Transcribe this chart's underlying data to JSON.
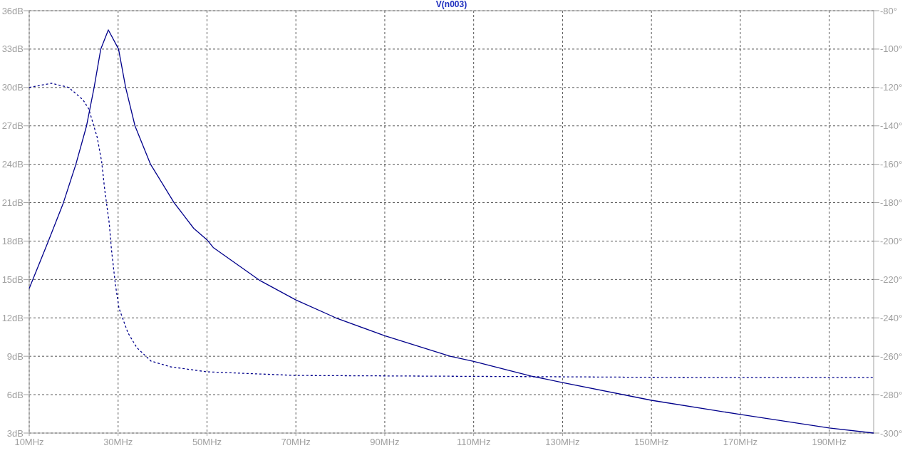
{
  "chart_data": {
    "type": "line",
    "title": "V(n003)",
    "xlim": [
      10,
      200
    ],
    "xticks": [
      {
        "value": 10,
        "label": "10MHz"
      },
      {
        "value": 30,
        "label": "30MHz"
      },
      {
        "value": 50,
        "label": "50MHz"
      },
      {
        "value": 70,
        "label": "70MHz"
      },
      {
        "value": 90,
        "label": "90MHz"
      },
      {
        "value": 110,
        "label": "110MHz"
      },
      {
        "value": 130,
        "label": "130MHz"
      },
      {
        "value": 150,
        "label": "150MHz"
      },
      {
        "value": 170,
        "label": "170MHz"
      },
      {
        "value": 190,
        "label": "190MHz"
      }
    ],
    "ylim": [
      3,
      36
    ],
    "yticks": [
      {
        "value": 3,
        "label": "3dB"
      },
      {
        "value": 6,
        "label": "6dB"
      },
      {
        "value": 9,
        "label": "9dB"
      },
      {
        "value": 12,
        "label": "12dB"
      },
      {
        "value": 15,
        "label": "15dB"
      },
      {
        "value": 18,
        "label": "18dB"
      },
      {
        "value": 21,
        "label": "21dB"
      },
      {
        "value": 24,
        "label": "24dB"
      },
      {
        "value": 27,
        "label": "27dB"
      },
      {
        "value": 30,
        "label": "30dB"
      },
      {
        "value": 33,
        "label": "33dB"
      },
      {
        "value": 36,
        "label": "36dB"
      }
    ],
    "y2lim": [
      -300,
      -80
    ],
    "y2ticks": [
      {
        "value": -300,
        "label": "-300°"
      },
      {
        "value": -280,
        "label": "-280°"
      },
      {
        "value": -260,
        "label": "-260°"
      },
      {
        "value": -240,
        "label": "-240°"
      },
      {
        "value": -220,
        "label": "-220°"
      },
      {
        "value": -200,
        "label": "-200°"
      },
      {
        "value": -180,
        "label": "-180°"
      },
      {
        "value": -160,
        "label": "-160°"
      },
      {
        "value": -140,
        "label": "-140°"
      },
      {
        "value": -120,
        "label": "-120°"
      },
      {
        "value": -100,
        "label": "-100°"
      },
      {
        "value": -80,
        "label": "-80°"
      }
    ],
    "grid": true,
    "series": [
      {
        "color": "#00008b",
        "line_style": "solid",
        "x": [
          10,
          14.2,
          17.6,
          20.5,
          22.9,
          24.6,
          26.1,
          27.8,
          30.1,
          31.7,
          33.8,
          37.3,
          42.6,
          47,
          50,
          51.4,
          62,
          70,
          79,
          90,
          104.7,
          110,
          123,
          130,
          150,
          170,
          190,
          200
        ],
        "values": [
          14.3,
          17.9,
          20.9,
          24,
          27,
          30,
          33,
          34.5,
          33,
          30,
          27,
          24,
          21,
          19,
          18.1,
          17.5,
          14.9,
          13.4,
          12,
          10.6,
          9,
          8.6,
          7.45,
          6.95,
          5.56,
          4.45,
          3.4,
          3
        ]
      },
      {
        "color": "#00008b",
        "line_style": "dashed",
        "axis": "y2",
        "x": [
          10,
          15,
          18.9,
          22.1,
          23.4,
          25.3,
          26.3,
          27,
          28,
          28.5,
          29.4,
          30.2,
          32.2,
          34.2,
          37.4,
          41.8,
          50,
          70,
          130,
          160,
          200
        ],
        "values": [
          -120,
          -117.8,
          -120,
          -126.4,
          -131.2,
          -146,
          -158.7,
          -173.5,
          -190.6,
          -204.3,
          -222.8,
          -235,
          -247.7,
          -255.5,
          -262.5,
          -265.5,
          -268.1,
          -270,
          -270.7,
          -271.1,
          -271.1
        ]
      }
    ]
  }
}
